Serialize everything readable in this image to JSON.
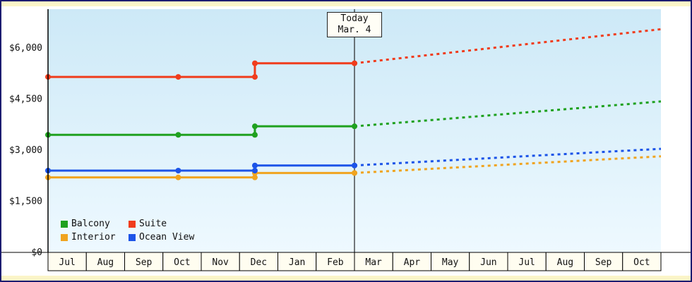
{
  "colors": {
    "frame_border": "#1c1c70",
    "frame_strip": "#fbf5c8",
    "panel_bg": "#ffffff",
    "plot_gradient_top": "#cde9f7",
    "plot_gradient_bottom": "#eef9ff",
    "axis": "#000000",
    "cell_bg": "#fffdf0",
    "text": "#111111",
    "today_line": "#222222"
  },
  "chart_data": {
    "type": "line",
    "title": "",
    "legend_position": "bottom-left",
    "grid": false,
    "x_tick_labels": [
      "Jul",
      "Aug",
      "Sep",
      "Oct",
      "Nov",
      "Dec",
      "Jan",
      "Feb",
      "Mar",
      "Apr",
      "May",
      "Jun",
      "Jul",
      "Aug",
      "Sep",
      "Oct"
    ],
    "y_tick_labels": [
      "$0",
      "$1,500",
      "$3,000",
      "$4,500",
      "$6,000"
    ],
    "y_tick_values": [
      0,
      1500,
      3000,
      4500,
      6000
    ],
    "ylim": [
      0,
      7150
    ],
    "xlabel": "",
    "ylabel": "",
    "today": {
      "line1": "Today",
      "line2": "Mar. 4",
      "x_month": 8
    },
    "legend_order": [
      "Balcony",
      "Suite",
      "Interior",
      "Ocean View"
    ],
    "series": [
      {
        "name": "Balcony",
        "color": "#1fa11f",
        "history": [
          [
            0,
            3450
          ],
          [
            5.4,
            3450
          ],
          [
            5.4,
            3700
          ],
          [
            8,
            3700
          ]
        ],
        "markers": [
          [
            0,
            3450
          ],
          [
            3.4,
            3450
          ],
          [
            5.4,
            3450
          ],
          [
            5.4,
            3700
          ],
          [
            8,
            3700
          ]
        ],
        "forecast": [
          [
            8,
            3700
          ],
          [
            16,
            4430
          ]
        ]
      },
      {
        "name": "Suite",
        "color": "#f03c1c",
        "history": [
          [
            0,
            5150
          ],
          [
            5.4,
            5150
          ],
          [
            5.4,
            5550
          ],
          [
            8,
            5550
          ]
        ],
        "markers": [
          [
            0,
            5150
          ],
          [
            3.4,
            5150
          ],
          [
            5.4,
            5150
          ],
          [
            5.4,
            5550
          ],
          [
            8,
            5550
          ]
        ],
        "forecast": [
          [
            8,
            5550
          ],
          [
            16,
            6550
          ]
        ]
      },
      {
        "name": "Interior",
        "color": "#f0a420",
        "history": [
          [
            0,
            2200
          ],
          [
            5.4,
            2200
          ],
          [
            5.4,
            2330
          ],
          [
            8,
            2330
          ]
        ],
        "markers": [
          [
            0,
            2200
          ],
          [
            3.4,
            2200
          ],
          [
            5.4,
            2200
          ],
          [
            5.4,
            2330
          ],
          [
            8,
            2330
          ]
        ],
        "forecast": [
          [
            8,
            2330
          ],
          [
            16,
            2820
          ]
        ]
      },
      {
        "name": "Ocean View",
        "color": "#1c54e8",
        "history": [
          [
            0,
            2400
          ],
          [
            5.4,
            2400
          ],
          [
            5.4,
            2550
          ],
          [
            8,
            2550
          ]
        ],
        "markers": [
          [
            0,
            2400
          ],
          [
            3.4,
            2400
          ],
          [
            5.4,
            2400
          ],
          [
            5.4,
            2550
          ],
          [
            8,
            2550
          ]
        ],
        "forecast": [
          [
            8,
            2550
          ],
          [
            16,
            3040
          ]
        ]
      }
    ]
  }
}
